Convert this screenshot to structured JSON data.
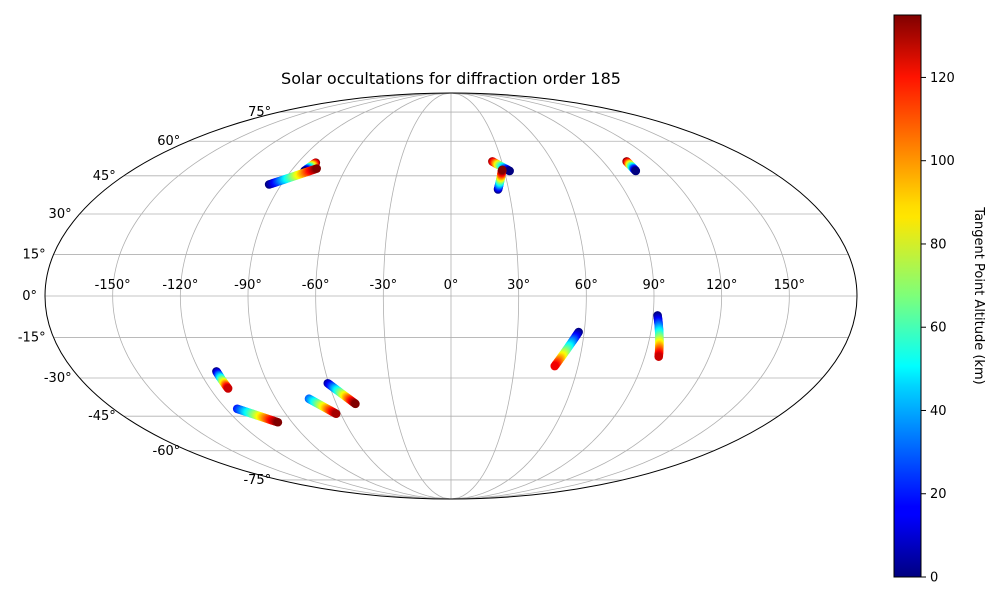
{
  "chart_data": {
    "type": "scatter",
    "projection": "mollweide",
    "title": "Solar occultations for diffraction order 185",
    "colorbar": {
      "label": "Tangent Point Altitude (km)",
      "range": [
        0,
        135
      ],
      "ticks": [
        "0",
        "20",
        "40",
        "60",
        "80",
        "100",
        "120"
      ],
      "tick_values": [
        0,
        20,
        40,
        60,
        80,
        100,
        120
      ],
      "colormap": "jet"
    },
    "lon_ticks": [
      "-150°",
      "-120°",
      "-90°",
      "-60°",
      "-30°",
      "0°",
      "30°",
      "60°",
      "90°",
      "120°",
      "150°"
    ],
    "lon_values": [
      -150,
      -120,
      -90,
      -60,
      -30,
      0,
      30,
      60,
      90,
      120,
      150
    ],
    "lat_ticks": [
      "75°",
      "60°",
      "45°",
      "30°",
      "15°",
      "0°",
      "-15°",
      "-30°",
      "-45°",
      "-60°",
      "-75°"
    ],
    "lat_values": [
      75,
      60,
      45,
      30,
      15,
      0,
      -15,
      -30,
      -45,
      -60,
      -75
    ],
    "grid": true,
    "series": [
      {
        "start": {
          "lon": -79.5,
          "lat": 50.5,
          "alt": 135
        },
        "end": {
          "lon": -82.5,
          "lat": 47.0,
          "alt": 0
        }
      },
      {
        "start": {
          "lon": -96.5,
          "lat": 41.5,
          "alt": 0
        },
        "end": {
          "lon": -76.5,
          "lat": 48.0,
          "alt": 135
        }
      },
      {
        "start": {
          "lon": 24.5,
          "lat": 51.0,
          "alt": 130
        },
        "end": {
          "lon": 33.0,
          "lat": 47.0,
          "alt": 0
        }
      },
      {
        "start": {
          "lon": 24.5,
          "lat": 39.5,
          "alt": 0
        },
        "end": {
          "lon": 29.0,
          "lat": 47.5,
          "alt": 135
        }
      },
      {
        "start": {
          "lon": 104.0,
          "lat": 51.0,
          "alt": 135
        },
        "end": {
          "lon": 104.0,
          "lat": 47.0,
          "alt": 0
        }
      },
      {
        "start": {
          "lon": 57.5,
          "lat": -13.0,
          "alt": 0
        },
        "end": {
          "lon": 49.0,
          "lat": -25.5,
          "alt": 120
        }
      },
      {
        "start": {
          "lon": 92.0,
          "lat": -7.0,
          "alt": 0
        },
        "end": {
          "lon": 96.5,
          "lat": -22.0,
          "alt": 125
        }
      },
      {
        "start": {
          "lon": -112.0,
          "lat": -27.5,
          "alt": 0
        },
        "end": {
          "lon": -111.0,
          "lat": -34.0,
          "alt": 125
        }
      },
      {
        "start": {
          "lon": -114.0,
          "lat": -42.0,
          "alt": 20
        },
        "end": {
          "lon": -98.0,
          "lat": -47.5,
          "alt": 135
        }
      },
      {
        "start": {
          "lon": -73.0,
          "lat": -38.0,
          "alt": 30
        },
        "end": {
          "lon": -62.5,
          "lat": -44.0,
          "alt": 130
        }
      },
      {
        "start": {
          "lon": -60.5,
          "lat": -32.0,
          "alt": 5
        },
        "end": {
          "lon": -50.0,
          "lat": -40.0,
          "alt": 135
        }
      }
    ]
  }
}
